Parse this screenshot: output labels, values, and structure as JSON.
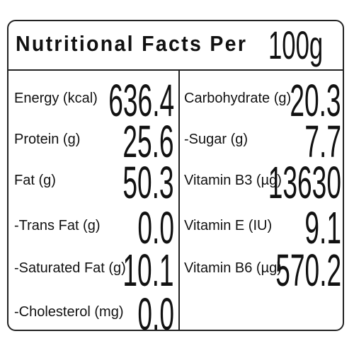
{
  "header": {
    "title": "Nutritional Facts Per",
    "unit": "100g"
  },
  "table": {
    "left": [
      [
        "Energy (kcal)",
        "636.4"
      ],
      [
        "Protein (g)",
        "25.6"
      ],
      [
        "Fat (g)",
        "50.3"
      ],
      [
        "-Trans Fat (g)",
        "0.0"
      ],
      [
        "-Saturated Fat (g)",
        "10.1"
      ],
      [
        "-Cholesterol (mg)",
        "0.0"
      ]
    ],
    "right": [
      [
        "Carbohydrate (g)",
        "20.3"
      ],
      [
        "-Sugar (g)",
        "7.7"
      ],
      [
        "Vitamin B3 (µg)",
        "13630"
      ],
      [
        "Vitamin E (IU)",
        "9.1"
      ],
      [
        "Vitamin B6 (µg)",
        "570.2"
      ]
    ]
  }
}
